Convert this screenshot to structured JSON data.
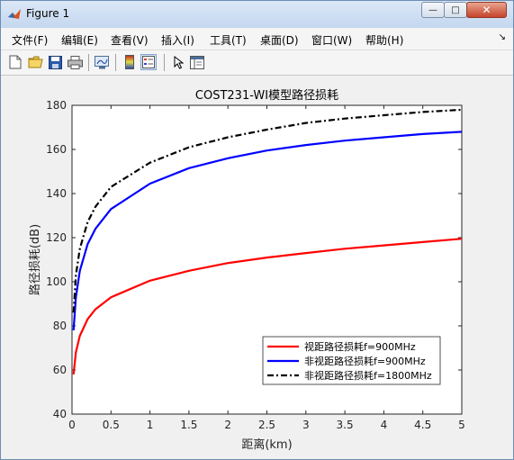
{
  "window": {
    "title": "Figure 1",
    "minimize_glyph": "—",
    "maximize_glyph": "□",
    "close_glyph": "✕"
  },
  "menubar": {
    "items": [
      {
        "label": "文件(F)"
      },
      {
        "label": "编辑(E)"
      },
      {
        "label": "查看(V)"
      },
      {
        "label": "插入(I)"
      },
      {
        "label": "工具(T)"
      },
      {
        "label": "桌面(D)"
      },
      {
        "label": "窗口(W)"
      },
      {
        "label": "帮助(H)"
      }
    ],
    "overflow_glyph": "↘"
  },
  "toolbar": {
    "icons": [
      "new-figure-icon",
      "open-file-icon",
      "save-icon",
      "print-icon",
      "link-axes-icon",
      "colorbar-icon",
      "legend-icon",
      "select-arrow-icon",
      "property-editor-icon"
    ]
  },
  "colors": {
    "los": "#ff0000",
    "nlos900": "#0000ff",
    "nlos1800": "#000000"
  },
  "chart_data": {
    "type": "line",
    "title": "COST231-WI模型路径损耗",
    "xlabel": "距离(km)",
    "ylabel": "路径损耗(dB)",
    "xlim": [
      0,
      5
    ],
    "ylim": [
      40,
      180
    ],
    "xticks": [
      "0",
      "0.5",
      "1",
      "1.5",
      "2",
      "2.5",
      "3",
      "3.5",
      "4",
      "4.5",
      "5"
    ],
    "yticks": [
      "40",
      "60",
      "80",
      "100",
      "120",
      "140",
      "160",
      "180"
    ],
    "grid": false,
    "legend_position": "bottom-right",
    "series": [
      {
        "name": "视距路径损耗f=900MHz",
        "color": "#ff0000",
        "style": "solid",
        "x": [
          0.02,
          0.05,
          0.1,
          0.2,
          0.3,
          0.5,
          1,
          1.5,
          2,
          2.5,
          3,
          3.5,
          4,
          4.5,
          5
        ],
        "y": [
          58,
          68,
          75.5,
          83,
          87.5,
          93,
          100.5,
          105,
          108.5,
          111,
          113,
          115,
          116.5,
          118,
          119.5
        ]
      },
      {
        "name": "非视距路径损耗f=900MHz",
        "color": "#0000ff",
        "style": "solid",
        "x": [
          0.02,
          0.05,
          0.1,
          0.2,
          0.3,
          0.5,
          1,
          1.5,
          2,
          2.5,
          3,
          3.5,
          4,
          4.5,
          5
        ],
        "y": [
          78,
          93,
          105,
          117,
          124,
          133,
          144.5,
          151.5,
          156,
          159.5,
          162,
          164,
          165.5,
          167,
          168
        ]
      },
      {
        "name": "非视距路径损耗f=1800MHz",
        "color": "#000000",
        "style": "dashdot",
        "x": [
          0.02,
          0.05,
          0.1,
          0.2,
          0.3,
          0.5,
          1,
          1.5,
          2,
          2.5,
          3,
          3.5,
          4,
          4.5,
          5
        ],
        "y": [
          86,
          103,
          115,
          127,
          134,
          143,
          154,
          161,
          165.5,
          169,
          172,
          174,
          175.5,
          177,
          178
        ]
      }
    ]
  }
}
